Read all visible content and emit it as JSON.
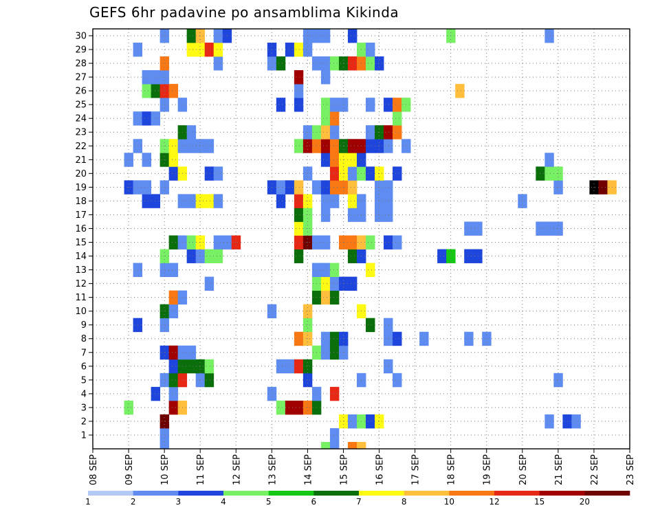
{
  "chart_data": {
    "type": "heatmap",
    "title": "GEFS 6hr padavine po ansamblima Kikinda",
    "x_start_day": 8,
    "x_ticks": [
      "08 SEP",
      "09 SEP",
      "10 SEP",
      "11 SEP",
      "12 SEP",
      "13 SEP",
      "14 SEP",
      "15 SEP",
      "16 SEP",
      "17 SEP",
      "18 SEP",
      "19 SEP",
      "20 SEP",
      "21 SEP",
      "22 SEP",
      "23 SEP"
    ],
    "y_ticks": [
      "1",
      "2",
      "3",
      "4",
      "5",
      "6",
      "7",
      "8",
      "9",
      "10",
      "11",
      "12",
      "13",
      "14",
      "15",
      "16",
      "17",
      "18",
      "19",
      "20",
      "21",
      "22",
      "23",
      "24",
      "25",
      "26",
      "27",
      "28",
      "29",
      "30"
    ],
    "grid": true,
    "legend": {
      "position": "bottom",
      "labels": [
        "1",
        "2",
        "3",
        "4",
        "5",
        "6",
        "7",
        "8",
        "10",
        "12",
        "15",
        "20"
      ],
      "colors": [
        "#b4c8f5",
        "#5f8cf0",
        "#1e46dc",
        "#78f064",
        "#14c814",
        "#0a6e0a",
        "#fffa14",
        "#ffbe3c",
        "#fa7814",
        "#e62814",
        "#a00000",
        "#6e0000"
      ]
    },
    "cells": [
      [
        0,
        10,
        1
      ],
      [
        0,
        14.5,
        3
      ],
      [
        0,
        14.75,
        1
      ],
      [
        0,
        15.25,
        8
      ],
      [
        0,
        15.5,
        7
      ],
      [
        1,
        10,
        1
      ],
      [
        1,
        14.75,
        1
      ],
      [
        2,
        10,
        11
      ],
      [
        2,
        15,
        6
      ],
      [
        2,
        15.25,
        1
      ],
      [
        2,
        15.5,
        3
      ],
      [
        2,
        15.75,
        2
      ],
      [
        2,
        16,
        6
      ],
      [
        2,
        20.75,
        1
      ],
      [
        2,
        21.25,
        2
      ],
      [
        2,
        21.5,
        1
      ],
      [
        3,
        9,
        3
      ],
      [
        3,
        10.25,
        10
      ],
      [
        3,
        10.5,
        7
      ],
      [
        3,
        13.25,
        3
      ],
      [
        3,
        13.5,
        10
      ],
      [
        3,
        13.75,
        10
      ],
      [
        3,
        14,
        8
      ],
      [
        3,
        14.25,
        5
      ],
      [
        4,
        9.75,
        2
      ],
      [
        4,
        10.25,
        1
      ],
      [
        4,
        13,
        1
      ],
      [
        4,
        14.25,
        1
      ],
      [
        4,
        14.75,
        9
      ],
      [
        5,
        10,
        1
      ],
      [
        5,
        10.25,
        5
      ],
      [
        5,
        10.5,
        9
      ],
      [
        5,
        11,
        1
      ],
      [
        5,
        11.25,
        5
      ],
      [
        5,
        14,
        2
      ],
      [
        5,
        15.5,
        1
      ],
      [
        5,
        16.5,
        1
      ],
      [
        5,
        21,
        1
      ],
      [
        6,
        10.25,
        2
      ],
      [
        6,
        10.5,
        5
      ],
      [
        6,
        10.75,
        5
      ],
      [
        6,
        11,
        5
      ],
      [
        6,
        11.25,
        3
      ],
      [
        6,
        13.25,
        1
      ],
      [
        6,
        13.5,
        1
      ],
      [
        6,
        13.75,
        9
      ],
      [
        6,
        14,
        5
      ],
      [
        6,
        16.25,
        1
      ],
      [
        7,
        10,
        2
      ],
      [
        7,
        10.25,
        10
      ],
      [
        7,
        10.5,
        1
      ],
      [
        7,
        10.75,
        1
      ],
      [
        7,
        14.25,
        3
      ],
      [
        7,
        14.5,
        1
      ],
      [
        7,
        14.75,
        5
      ],
      [
        7,
        15,
        1
      ],
      [
        8,
        13.75,
        8
      ],
      [
        8,
        14,
        7
      ],
      [
        8,
        14.5,
        1
      ],
      [
        8,
        14.75,
        5
      ],
      [
        8,
        15,
        2
      ],
      [
        8,
        16.25,
        1
      ],
      [
        8,
        16.5,
        2
      ],
      [
        8,
        17.25,
        1
      ],
      [
        8,
        18.5,
        1
      ],
      [
        8,
        19,
        1
      ],
      [
        9,
        9.25,
        2
      ],
      [
        9,
        10,
        1
      ],
      [
        9,
        14,
        3
      ],
      [
        9,
        15.75,
        5
      ],
      [
        9,
        16.25,
        1
      ],
      [
        10,
        10,
        5
      ],
      [
        10,
        10.25,
        1
      ],
      [
        10,
        13,
        1
      ],
      [
        10,
        14,
        7
      ],
      [
        10,
        15.5,
        6
      ],
      [
        11,
        10.25,
        8
      ],
      [
        11,
        10.5,
        1
      ],
      [
        11,
        14.25,
        5
      ],
      [
        11,
        14.5,
        7
      ],
      [
        11,
        14.75,
        5
      ],
      [
        12,
        11.25,
        1
      ],
      [
        12,
        14.25,
        3
      ],
      [
        12,
        14.5,
        6
      ],
      [
        12,
        14.75,
        1
      ],
      [
        12,
        15,
        2
      ],
      [
        12,
        15.25,
        2
      ],
      [
        13,
        9.25,
        1
      ],
      [
        13,
        10,
        1
      ],
      [
        13,
        10.25,
        1
      ],
      [
        13,
        14.25,
        1
      ],
      [
        13,
        14.5,
        1
      ],
      [
        13,
        14.75,
        3
      ],
      [
        13,
        15.75,
        6
      ],
      [
        14,
        10,
        3
      ],
      [
        14,
        10.75,
        2
      ],
      [
        14,
        11,
        1
      ],
      [
        14,
        11.25,
        3
      ],
      [
        14,
        11.5,
        3
      ],
      [
        14,
        13.75,
        5
      ],
      [
        14,
        15.25,
        5
      ],
      [
        14,
        15.5,
        2
      ],
      [
        14,
        17.75,
        2
      ],
      [
        14,
        18,
        4
      ],
      [
        14,
        18.5,
        2
      ],
      [
        14,
        18.75,
        2
      ],
      [
        15,
        10.25,
        5
      ],
      [
        15,
        10.5,
        1
      ],
      [
        15,
        10.75,
        3
      ],
      [
        15,
        11,
        6
      ],
      [
        15,
        11.5,
        1
      ],
      [
        15,
        11.75,
        1
      ],
      [
        15,
        12,
        9
      ],
      [
        15,
        13.75,
        9
      ],
      [
        15,
        14,
        11
      ],
      [
        15,
        14.25,
        1
      ],
      [
        15,
        14.5,
        1
      ],
      [
        15,
        15,
        8
      ],
      [
        15,
        15.25,
        8
      ],
      [
        15,
        15.5,
        7
      ],
      [
        15,
        15.75,
        3
      ],
      [
        15,
        16.25,
        2
      ],
      [
        15,
        16.5,
        1
      ],
      [
        16,
        13.75,
        6
      ],
      [
        16,
        14,
        3
      ],
      [
        16,
        18.5,
        1
      ],
      [
        16,
        18.75,
        1
      ],
      [
        16,
        20.5,
        1
      ],
      [
        16,
        20.75,
        1
      ],
      [
        16,
        21,
        1
      ],
      [
        17,
        13.75,
        5
      ],
      [
        17,
        14,
        3
      ],
      [
        17,
        14.5,
        1
      ],
      [
        17,
        15.25,
        1
      ],
      [
        17,
        15.5,
        1
      ],
      [
        17,
        16,
        1
      ],
      [
        17,
        16.25,
        1
      ],
      [
        18,
        9.5,
        2
      ],
      [
        18,
        9.75,
        2
      ],
      [
        18,
        10.5,
        1
      ],
      [
        18,
        10.75,
        1
      ],
      [
        18,
        11,
        6
      ],
      [
        18,
        11.25,
        6
      ],
      [
        18,
        11.5,
        1
      ],
      [
        18,
        13.25,
        2
      ],
      [
        18,
        13.75,
        9
      ],
      [
        18,
        14,
        6
      ],
      [
        18,
        14.5,
        1
      ],
      [
        18,
        14.75,
        1
      ],
      [
        18,
        15.25,
        6
      ],
      [
        18,
        15.5,
        1
      ],
      [
        18,
        16,
        1
      ],
      [
        18,
        16.25,
        1
      ],
      [
        18,
        20,
        1
      ],
      [
        19,
        9,
        2
      ],
      [
        19,
        9.25,
        1
      ],
      [
        19,
        9.5,
        1
      ],
      [
        19,
        10,
        1
      ],
      [
        19,
        13,
        2
      ],
      [
        19,
        13.25,
        1
      ],
      [
        19,
        13.5,
        2
      ],
      [
        19,
        13.75,
        7
      ],
      [
        19,
        14.25,
        1
      ],
      [
        19,
        14.5,
        2
      ],
      [
        19,
        14.75,
        8
      ],
      [
        19,
        15,
        8
      ],
      [
        19,
        15.25,
        7
      ],
      [
        19,
        16,
        1
      ],
      [
        19,
        16.25,
        1
      ],
      [
        19,
        21,
        1
      ],
      [
        19,
        22,
        12
      ],
      [
        19,
        22.25,
        11
      ],
      [
        19,
        22.5,
        7
      ],
      [
        20,
        10.25,
        2
      ],
      [
        20,
        10.5,
        6
      ],
      [
        20,
        11.25,
        2
      ],
      [
        20,
        11.5,
        1
      ],
      [
        20,
        14,
        1
      ],
      [
        20,
        14.75,
        9
      ],
      [
        20,
        15,
        6
      ],
      [
        20,
        15.25,
        1
      ],
      [
        20,
        15.5,
        3
      ],
      [
        20,
        15.75,
        2
      ],
      [
        20,
        16,
        6
      ],
      [
        20,
        16.5,
        2
      ],
      [
        20,
        20.5,
        5
      ],
      [
        20,
        20.75,
        3
      ],
      [
        20,
        21,
        3
      ],
      [
        21,
        9,
        1
      ],
      [
        21,
        9.5,
        1
      ],
      [
        21,
        10,
        5
      ],
      [
        21,
        10.25,
        6
      ],
      [
        21,
        14.5,
        2
      ],
      [
        21,
        14.75,
        8
      ],
      [
        21,
        15,
        6
      ],
      [
        21,
        15.25,
        6
      ],
      [
        21,
        15.5,
        2
      ],
      [
        21,
        20.75,
        1
      ],
      [
        22,
        9.25,
        1
      ],
      [
        22,
        10,
        3
      ],
      [
        22,
        10.25,
        6
      ],
      [
        22,
        10.5,
        1
      ],
      [
        22,
        10.75,
        1
      ],
      [
        22,
        11,
        1
      ],
      [
        22,
        11.25,
        1
      ],
      [
        22,
        13.75,
        3
      ],
      [
        22,
        14,
        10
      ],
      [
        22,
        14.25,
        8
      ],
      [
        22,
        14.5,
        10
      ],
      [
        22,
        14.75,
        8
      ],
      [
        22,
        15,
        5
      ],
      [
        22,
        15.25,
        10
      ],
      [
        22,
        15.5,
        10
      ],
      [
        22,
        15.75,
        2
      ],
      [
        22,
        16,
        2
      ],
      [
        22,
        16.25,
        1
      ],
      [
        22,
        16.75,
        1
      ],
      [
        23,
        10.5,
        5
      ],
      [
        23,
        10.75,
        1
      ],
      [
        23,
        14,
        1
      ],
      [
        23,
        14.25,
        3
      ],
      [
        23,
        14.5,
        7
      ],
      [
        23,
        14.75,
        1
      ],
      [
        23,
        15.75,
        1
      ],
      [
        23,
        16,
        5
      ],
      [
        23,
        16.25,
        10
      ],
      [
        23,
        16.5,
        8
      ],
      [
        24,
        9.25,
        1
      ],
      [
        24,
        9.5,
        2
      ],
      [
        24,
        9.75,
        1
      ],
      [
        24,
        14.5,
        3
      ],
      [
        24,
        14.75,
        8
      ],
      [
        24,
        16.5,
        3
      ],
      [
        25,
        10,
        1
      ],
      [
        25,
        10.5,
        1
      ],
      [
        25,
        13.25,
        2
      ],
      [
        25,
        13.75,
        2
      ],
      [
        25,
        14.5,
        3
      ],
      [
        25,
        14.75,
        1
      ],
      [
        25,
        15,
        1
      ],
      [
        25,
        15.75,
        1
      ],
      [
        25,
        16.25,
        2
      ],
      [
        25,
        16.5,
        8
      ],
      [
        25,
        16.75,
        3
      ],
      [
        26,
        9.5,
        3
      ],
      [
        26,
        9.75,
        5
      ],
      [
        26,
        10,
        9
      ],
      [
        26,
        10.25,
        8
      ],
      [
        26,
        13.75,
        1
      ],
      [
        26,
        18.25,
        7
      ],
      [
        27,
        9.5,
        1
      ],
      [
        27,
        9.75,
        1
      ],
      [
        27,
        10,
        1
      ],
      [
        27,
        13.75,
        10
      ],
      [
        27,
        14.5,
        1
      ],
      [
        28,
        10,
        8
      ],
      [
        28,
        11.5,
        1
      ],
      [
        28,
        13,
        1
      ],
      [
        28,
        13.25,
        5
      ],
      [
        28,
        14.25,
        1
      ],
      [
        28,
        14.5,
        1
      ],
      [
        28,
        14.75,
        3
      ],
      [
        28,
        15,
        5
      ],
      [
        28,
        15.25,
        9
      ],
      [
        28,
        15.5,
        8
      ],
      [
        28,
        15.75,
        3
      ],
      [
        28,
        16,
        2
      ],
      [
        29,
        9.25,
        1
      ],
      [
        29,
        10.75,
        6
      ],
      [
        29,
        11,
        6
      ],
      [
        29,
        11.25,
        9
      ],
      [
        29,
        11.5,
        6
      ],
      [
        29,
        13,
        2
      ],
      [
        29,
        13.5,
        2
      ],
      [
        29,
        13.75,
        6
      ],
      [
        29,
        14,
        1
      ],
      [
        29,
        15.5,
        3
      ],
      [
        29,
        15.75,
        1
      ],
      [
        30,
        10,
        1
      ],
      [
        30,
        10.75,
        5
      ],
      [
        30,
        11,
        7
      ],
      [
        30,
        11.5,
        1
      ],
      [
        30,
        11.75,
        2
      ],
      [
        30,
        14,
        1
      ],
      [
        30,
        14.25,
        1
      ],
      [
        30,
        14.5,
        1
      ],
      [
        30,
        15.25,
        2
      ],
      [
        30,
        18,
        3
      ],
      [
        30,
        20.75,
        1
      ]
    ]
  }
}
